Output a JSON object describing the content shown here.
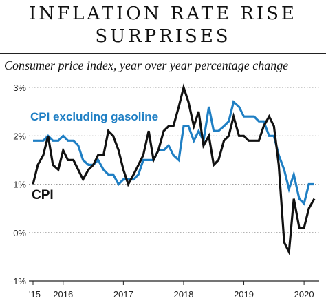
{
  "header": {
    "title_line1": "INFLATION RATE RISE",
    "title_line2": "SURPRISES",
    "subtitle": "Consumer price index, year over year percentage change"
  },
  "chart_data": {
    "type": "line",
    "title": "INFLATION RATE RISE SURPRISES",
    "subtitle": "Consumer price index, year over year percentage change",
    "xlabel": "",
    "ylabel": "",
    "ylim": [
      -1,
      3
    ],
    "yticks": [
      "3%",
      "2%",
      "1%",
      "0%",
      "-1%"
    ],
    "yticks_values": [
      3,
      2,
      1,
      0,
      -1
    ],
    "xticks": [
      "'15",
      "2016",
      "2017",
      "2018",
      "2019",
      "2020"
    ],
    "xticks_values": [
      2015.5,
      2016,
      2017,
      2018,
      2019,
      2020
    ],
    "grid": "horizontal dotted",
    "series": [
      {
        "name": "CPI",
        "color": "#111111",
        "points": [
          [
            2015.5,
            1.0
          ],
          [
            2015.58,
            1.4
          ],
          [
            2015.67,
            1.6
          ],
          [
            2015.75,
            2.0
          ],
          [
            2015.83,
            1.4
          ],
          [
            2015.92,
            1.3
          ],
          [
            2016.0,
            1.7
          ],
          [
            2016.08,
            1.5
          ],
          [
            2016.17,
            1.5
          ],
          [
            2016.25,
            1.3
          ],
          [
            2016.33,
            1.1
          ],
          [
            2016.42,
            1.3
          ],
          [
            2016.5,
            1.4
          ],
          [
            2016.58,
            1.6
          ],
          [
            2016.67,
            1.6
          ],
          [
            2016.75,
            2.1
          ],
          [
            2016.83,
            2.0
          ],
          [
            2016.92,
            1.7
          ],
          [
            2017.0,
            1.3
          ],
          [
            2017.08,
            1.0
          ],
          [
            2017.17,
            1.2
          ],
          [
            2017.25,
            1.4
          ],
          [
            2017.33,
            1.6
          ],
          [
            2017.42,
            2.1
          ],
          [
            2017.5,
            1.5
          ],
          [
            2017.58,
            1.7
          ],
          [
            2017.67,
            2.1
          ],
          [
            2017.75,
            2.2
          ],
          [
            2017.83,
            2.2
          ],
          [
            2017.92,
            2.6
          ],
          [
            2018.0,
            3.0
          ],
          [
            2018.08,
            2.7
          ],
          [
            2018.17,
            2.2
          ],
          [
            2018.25,
            2.5
          ],
          [
            2018.33,
            1.8
          ],
          [
            2018.42,
            2.0
          ],
          [
            2018.5,
            1.4
          ],
          [
            2018.58,
            1.5
          ],
          [
            2018.67,
            1.9
          ],
          [
            2018.75,
            2.0
          ],
          [
            2018.83,
            2.4
          ],
          [
            2018.92,
            2.0
          ],
          [
            2019.0,
            2.0
          ],
          [
            2019.08,
            1.9
          ],
          [
            2019.17,
            1.9
          ],
          [
            2019.25,
            1.9
          ],
          [
            2019.33,
            2.2
          ],
          [
            2019.42,
            2.4
          ],
          [
            2019.5,
            2.2
          ],
          [
            2019.58,
            1.4
          ],
          [
            2019.67,
            -0.2
          ],
          [
            2019.75,
            -0.4
          ],
          [
            2019.83,
            0.7
          ],
          [
            2019.92,
            0.1
          ],
          [
            2020.0,
            0.1
          ],
          [
            2020.08,
            0.5
          ],
          [
            2020.17,
            0.7
          ]
        ]
      },
      {
        "name": "CPI excluding gasoline",
        "color": "#1f7fc4",
        "points": [
          [
            2015.5,
            1.9
          ],
          [
            2015.58,
            1.9
          ],
          [
            2015.67,
            1.9
          ],
          [
            2015.75,
            2.0
          ],
          [
            2015.83,
            1.9
          ],
          [
            2015.92,
            1.9
          ],
          [
            2016.0,
            2.0
          ],
          [
            2016.08,
            1.9
          ],
          [
            2016.17,
            1.9
          ],
          [
            2016.25,
            1.8
          ],
          [
            2016.33,
            1.5
          ],
          [
            2016.42,
            1.4
          ],
          [
            2016.5,
            1.4
          ],
          [
            2016.58,
            1.5
          ],
          [
            2016.67,
            1.3
          ],
          [
            2016.75,
            1.2
          ],
          [
            2016.83,
            1.2
          ],
          [
            2016.92,
            1.0
          ],
          [
            2017.0,
            1.1
          ],
          [
            2017.08,
            1.1
          ],
          [
            2017.17,
            1.1
          ],
          [
            2017.25,
            1.2
          ],
          [
            2017.33,
            1.5
          ],
          [
            2017.42,
            1.5
          ],
          [
            2017.5,
            1.5
          ],
          [
            2017.58,
            1.7
          ],
          [
            2017.67,
            1.7
          ],
          [
            2017.75,
            1.8
          ],
          [
            2017.83,
            1.6
          ],
          [
            2017.92,
            1.5
          ],
          [
            2018.0,
            2.2
          ],
          [
            2018.08,
            2.2
          ],
          [
            2018.17,
            1.9
          ],
          [
            2018.25,
            2.1
          ],
          [
            2018.33,
            1.9
          ],
          [
            2018.42,
            2.6
          ],
          [
            2018.5,
            2.1
          ],
          [
            2018.58,
            2.1
          ],
          [
            2018.67,
            2.2
          ],
          [
            2018.75,
            2.3
          ],
          [
            2018.83,
            2.7
          ],
          [
            2018.92,
            2.6
          ],
          [
            2019.0,
            2.4
          ],
          [
            2019.08,
            2.4
          ],
          [
            2019.17,
            2.4
          ],
          [
            2019.25,
            2.3
          ],
          [
            2019.33,
            2.3
          ],
          [
            2019.42,
            2.0
          ],
          [
            2019.5,
            2.0
          ],
          [
            2019.58,
            1.6
          ],
          [
            2019.67,
            1.3
          ],
          [
            2019.75,
            0.9
          ],
          [
            2019.83,
            1.2
          ],
          [
            2019.92,
            0.7
          ],
          [
            2020.0,
            0.6
          ],
          [
            2020.08,
            1.0
          ],
          [
            2020.17,
            1.0
          ]
        ]
      }
    ],
    "labels": [
      {
        "text": "CPI excluding gasoline",
        "series": "CPI excluding gasoline"
      },
      {
        "text": "CPI",
        "series": "CPI"
      }
    ]
  }
}
